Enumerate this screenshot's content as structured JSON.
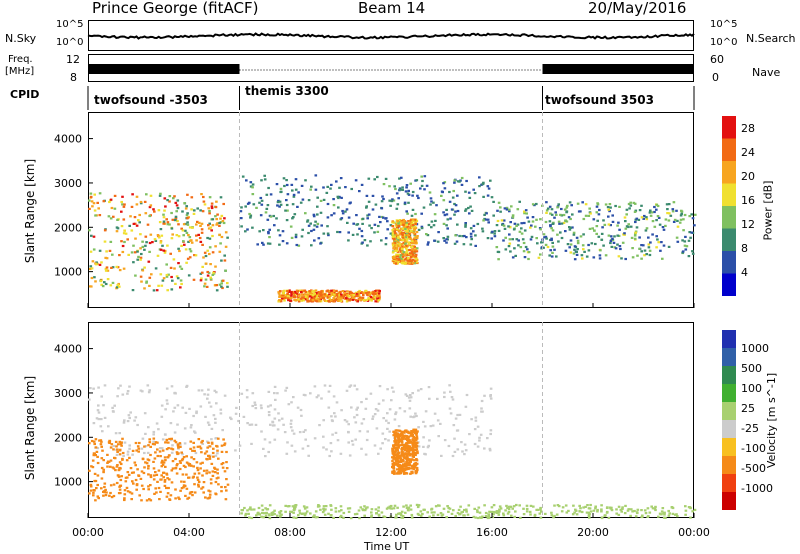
{
  "header": {
    "station": "Prince George (fitACF)",
    "beam": "Beam 14",
    "date": "20/May/2016"
  },
  "side_labels": {
    "nsky": "N.Sky",
    "nsearch": "N.Search",
    "freq": "Freq.",
    "freq_unit": "[MHz]",
    "nave": "Nave",
    "cpid": "CPID"
  },
  "noise_panel": {
    "left_ticks": [
      "10^5",
      "10^0"
    ],
    "right_ticks": [
      "10^5",
      "10^0"
    ]
  },
  "freq_panel": {
    "left_ticks": [
      "12",
      "8"
    ],
    "right_ticks": [
      "60",
      "0"
    ]
  },
  "cpid_segments": [
    {
      "label": "twofsound -3503",
      "start_hour": 0,
      "end_hour": 6.0
    },
    {
      "label": "themis 3300",
      "start_hour": 6.0,
      "end_hour": 18.0
    },
    {
      "label": "twofsound 3503",
      "start_hour": 18.0,
      "end_hour": 24.0
    }
  ],
  "colors": {
    "power_scale": [
      "#0000cc",
      "#2b4fa8",
      "#3b8a6e",
      "#7fc060",
      "#f0e030",
      "#f7a520",
      "#f26a14",
      "#e31010"
    ],
    "velocity_scale": [
      "#cc0000",
      "#f04010",
      "#f58a18",
      "#f8c020",
      "#cccccc",
      "#a8d070",
      "#40b030",
      "#2f8a50",
      "#3060a8",
      "#2030b0"
    ]
  },
  "chart_data": [
    {
      "type": "heatmap",
      "title": "Power",
      "xlabel": "Time UT",
      "ylabel": "Slant Range [km]",
      "xlim": [
        0,
        24
      ],
      "ylim": [
        180,
        4600
      ],
      "x_tick_labels": [
        "00:00",
        "04:00",
        "08:00",
        "12:00",
        "16:00",
        "20:00",
        "00:00"
      ],
      "y_ticks": [
        1000,
        2000,
        3000,
        4000
      ],
      "colorbar": {
        "label": "Power [dB]",
        "ticks": [
          4,
          8,
          12,
          16,
          20,
          24,
          28
        ],
        "range": [
          0,
          30
        ]
      },
      "features": [
        {
          "name": "descending echo band",
          "time_range": [
            0,
            5.5
          ],
          "range_km": [
            600,
            2800
          ],
          "power_db": [
            8,
            28
          ]
        },
        {
          "name": "arc echo",
          "time_range": [
            6,
            16
          ],
          "range_km": [
            1600,
            3200
          ],
          "power_db": [
            4,
            12
          ]
        },
        {
          "name": "strong patch",
          "time_range": [
            12.0,
            13.0
          ],
          "range_km": [
            1200,
            2200
          ],
          "power_db": [
            14,
            26
          ]
        },
        {
          "name": "near-range echo",
          "time_range": [
            7.5,
            11.5
          ],
          "range_km": [
            350,
            600
          ],
          "power_db": [
            16,
            28
          ]
        },
        {
          "name": "late band",
          "time_range": [
            16,
            24
          ],
          "range_km": [
            1300,
            2600
          ],
          "power_db": [
            4,
            16
          ]
        }
      ]
    },
    {
      "type": "heatmap",
      "title": "Velocity",
      "xlabel": "Time UT",
      "ylabel": "Slant Range [km]",
      "xlim": [
        0,
        24
      ],
      "ylim": [
        180,
        4600
      ],
      "x_tick_labels": [
        "00:00",
        "04:00",
        "08:00",
        "12:00",
        "16:00",
        "20:00",
        "00:00"
      ],
      "y_ticks": [
        1000,
        2000,
        3000,
        4000
      ],
      "colorbar": {
        "label": "Velocity [m s^-1]",
        "ticks": [
          1000,
          500,
          100,
          25,
          -25,
          -100,
          -500,
          -1000
        ]
      },
      "features": [
        {
          "name": "ground scatter arc",
          "time_range": [
            0,
            16
          ],
          "range_km": [
            1600,
            3200
          ],
          "velocity_ms": [
            -25,
            25
          ]
        },
        {
          "name": "receding flow band",
          "time_range": [
            0,
            5.5
          ],
          "range_km": [
            600,
            2000
          ],
          "velocity_ms": [
            -500,
            -100
          ]
        },
        {
          "name": "strong receding patch",
          "time_range": [
            12.0,
            13.0
          ],
          "range_km": [
            1200,
            2200
          ],
          "velocity_ms": [
            -500,
            -100
          ]
        },
        {
          "name": "near-range approaching",
          "time_range": [
            6,
            24
          ],
          "range_km": [
            200,
            500
          ],
          "velocity_ms": [
            25,
            100
          ]
        }
      ]
    }
  ]
}
